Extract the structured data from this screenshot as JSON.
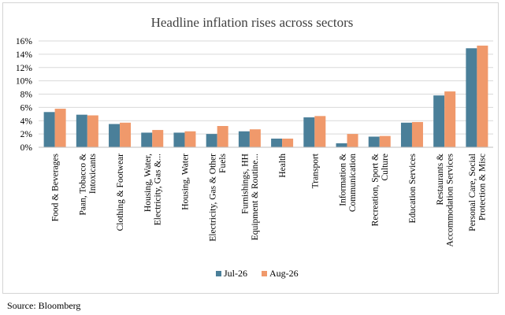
{
  "chart_data": {
    "type": "bar",
    "title": "Headline inflation rises across sectors",
    "xlabel": "",
    "ylabel": "",
    "ylim": [
      0,
      16
    ],
    "yticks": [
      "0%",
      "2%",
      "4%",
      "6%",
      "8%",
      "10%",
      "12%",
      "14%",
      "16%"
    ],
    "grid": true,
    "legend_position": "bottom",
    "categories": [
      "Food & Beverages",
      "Paan, Tobacco & Intoxicants",
      "Clothing & Footwear",
      "Housing, Water, Electricity, Gas &...",
      "Housing,  Water",
      "Electricity, Gas & Other Fuels",
      "Furnishings, HH Equipment & Routine...",
      "Health",
      "Transport",
      "Information & Communication",
      "Recreation, Sport & Culture",
      "Education Services",
      "Restaurants & Accommodation Services",
      "Personal Care, Social Protection & Misc"
    ],
    "category_lines": [
      [
        "Food & Beverages"
      ],
      [
        "Paan, Tobacco &",
        "Intoxicants"
      ],
      [
        "Clothing & Footwear"
      ],
      [
        "Housing, Water,",
        "Electricity, Gas &..."
      ],
      [
        "Housing,  Water"
      ],
      [
        "Electricity, Gas & Other",
        "Fuels"
      ],
      [
        "Furnishings, HH",
        "Equipment & Routine..."
      ],
      [
        "Health"
      ],
      [
        "Transport"
      ],
      [
        "Information &",
        "Communication"
      ],
      [
        "Recreation, Sport &",
        "Culture"
      ],
      [
        "Education Services"
      ],
      [
        "Restaurants &",
        "Accommodation Services"
      ],
      [
        "Personal Care, Social",
        "Protection & Misc"
      ]
    ],
    "series": [
      {
        "name": "Jul-26",
        "color": "#4a7f99",
        "values": [
          5.3,
          4.9,
          3.5,
          2.2,
          2.2,
          2.0,
          2.4,
          1.3,
          4.5,
          0.6,
          1.6,
          3.7,
          7.8,
          14.9
        ]
      },
      {
        "name": "Aug-26",
        "color": "#f0996b",
        "values": [
          5.8,
          4.8,
          3.7,
          2.6,
          2.4,
          3.2,
          2.7,
          1.3,
          4.7,
          2.0,
          1.7,
          3.8,
          8.4,
          15.3
        ]
      }
    ]
  },
  "source": "Source: Bloomberg"
}
